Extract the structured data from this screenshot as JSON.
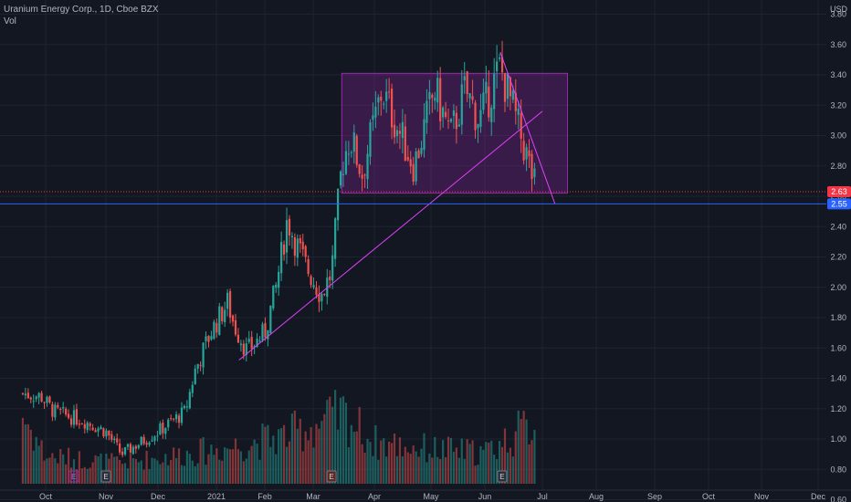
{
  "legend": {
    "symbol_line": "Uranium Energy Corp., 1D, Cboe BZX",
    "volume_label": "Vol"
  },
  "axis": {
    "currency": "USD",
    "y_ticks": [
      "3.80",
      "3.60",
      "3.40",
      "3.20",
      "3.00",
      "2.80",
      "2.60",
      "2.40",
      "2.20",
      "2.00",
      "1.80",
      "1.60",
      "1.40",
      "1.20",
      "1.00",
      "0.80",
      "0.60"
    ],
    "x_ticks": [
      "Oct",
      "Nov",
      "Dec",
      "2021",
      "Feb",
      "Mar",
      "Apr",
      "May",
      "Jun",
      "Jul",
      "Aug",
      "Sep",
      "Oct",
      "Nov",
      "Dec"
    ]
  },
  "price_tags": {
    "last": "2.63",
    "line": "2.55"
  },
  "earnings_marker": "E",
  "colors": {
    "background": "#131722",
    "up": "#26a69a",
    "down": "#ef5350",
    "range_box": "#9c27b0",
    "trendline": "#e040fb",
    "horizontal_line": "#2962ff",
    "last_price": "#f23645"
  },
  "chart_data": {
    "type": "candlestick",
    "symbol": "Uranium Energy Corp.",
    "interval": "1D",
    "exchange": "Cboe BZX",
    "y_range": [
      0.5,
      3.9
    ],
    "grid": true,
    "last_price": 2.63,
    "horizontal_line": 2.55,
    "range_box": {
      "from": "Mar 15",
      "to": "Jul 15",
      "low": 2.62,
      "high": 3.41
    },
    "trendlines": [
      {
        "from": [
          "Jan 15",
          1.52
        ],
        "to": [
          "Jul 1",
          3.16
        ]
      },
      {
        "from": [
          "Jun 9",
          3.55
        ],
        "to": [
          "Jul 8",
          2.55
        ]
      }
    ],
    "price_anchors": [
      [
        "Sep 15",
        1.3
      ],
      [
        "Sep 28",
        1.28
      ],
      [
        "Oct 5",
        1.18
      ],
      [
        "Oct 20",
        1.12
      ],
      [
        "Nov 1",
        1.05
      ],
      [
        "Nov 10",
        0.9
      ],
      [
        "Nov 20",
        0.97
      ],
      [
        "Dec 1",
        1.05
      ],
      [
        "Dec 15",
        1.18
      ],
      [
        "Dec 20",
        1.45
      ],
      [
        "Dec 28",
        1.7
      ],
      [
        "Jan 8",
        1.9
      ],
      [
        "Jan 12",
        1.75
      ],
      [
        "Jan 20",
        1.58
      ],
      [
        "Feb 1",
        1.7
      ],
      [
        "Feb 8",
        2.0
      ],
      [
        "Feb 15",
        2.45
      ],
      [
        "Feb 20",
        2.3
      ],
      [
        "Feb 26",
        2.15
      ],
      [
        "Mar 5",
        1.95
      ],
      [
        "Mar 10",
        2.1
      ],
      [
        "Mar 15",
        2.8
      ],
      [
        "Mar 19",
        3.0
      ],
      [
        "Mar 25",
        2.75
      ],
      [
        "Apr 5",
        3.3
      ],
      [
        "Apr 15",
        3.0
      ],
      [
        "Apr 22",
        2.8
      ],
      [
        "May 3",
        3.3
      ],
      [
        "May 12",
        3.0
      ],
      [
        "May 20",
        3.3
      ],
      [
        "May 28",
        3.1
      ],
      [
        "Jun 9",
        3.45
      ],
      [
        "Jun 15",
        3.2
      ],
      [
        "Jun 22",
        2.9
      ],
      [
        "Jun 28",
        2.63
      ]
    ],
    "volume_anchors": [
      [
        "Sep 15",
        1.0
      ],
      [
        "Oct 1",
        0.4
      ],
      [
        "Nov 10",
        0.3
      ],
      [
        "Dec 20",
        0.45
      ],
      [
        "Jan 15",
        0.55
      ],
      [
        "Feb 15",
        0.7
      ],
      [
        "Mar 16",
        1.0
      ],
      [
        "Apr 1",
        0.6
      ],
      [
        "May 1",
        0.5
      ],
      [
        "Jun 1",
        0.45
      ],
      [
        "Jun 28",
        0.9
      ]
    ],
    "earnings": [
      "Nov 1",
      "Mar 10",
      "Jun 10",
      "Oct 15"
    ]
  }
}
